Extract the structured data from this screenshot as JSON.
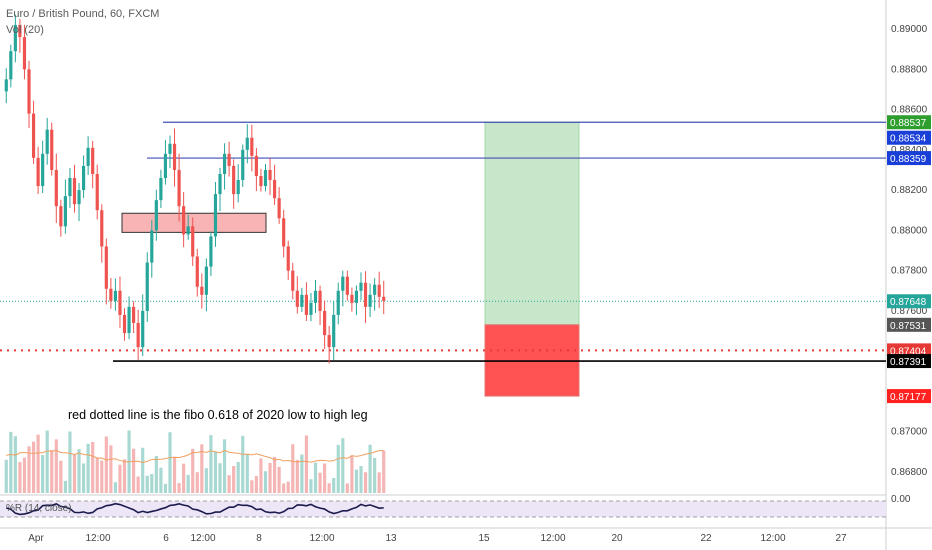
{
  "header": {
    "symbol_line": "Euro / British Pound, 60, FXCM",
    "volume_line": "Vol (20)"
  },
  "annotation": {
    "text": "red dotted line is the fibo 0.618 of 2020 low to high leg"
  },
  "oscillator": {
    "label": "%R (14, close)",
    "axis_label": "0.00"
  },
  "colors": {
    "up": "#26a69a",
    "down": "#ef5350",
    "level_line": "#3f51b5",
    "fib_line": "#e53935",
    "profit_zone": "#c8e6c9",
    "loss_zone": "#ff5252",
    "last_price": "#26a69a"
  },
  "chart_data": {
    "type": "candlestick",
    "title": "Euro / British Pound, 60, FXCM",
    "xlabel": "",
    "ylabel": "",
    "ylim": [
      0.8657,
      0.8912
    ],
    "y_ticks": [
      "0.89000",
      "0.88800",
      "0.88600",
      "0.88400",
      "0.88200",
      "0.88000",
      "0.87800",
      "0.87600",
      "0.87000",
      "0.86800"
    ],
    "x_ticks": [
      "Apr",
      "12:00",
      "6",
      "12:00",
      "8",
      "12:00",
      "13",
      "15",
      "12:00",
      "20",
      "22",
      "12:00",
      "27"
    ],
    "price_tags": [
      {
        "label": "0.88537",
        "color": "#2e9e2e",
        "text_color": "#ffffff",
        "value": 0.88537
      },
      {
        "label": "0.88534",
        "color": "#1a3ed8",
        "text_color": "#ffffff",
        "value": 0.8846
      },
      {
        "label": "0.88359",
        "color": "#1a3ed8",
        "text_color": "#ffffff",
        "value": 0.88359
      },
      {
        "label": "0.87648",
        "color": "#26a69a",
        "text_color": "#ffffff",
        "value": 0.87648
      },
      {
        "label": "0.87531",
        "color": "#555555",
        "text_color": "#ffffff",
        "value": 0.87531
      },
      {
        "label": "0.87404",
        "color": "#e53935",
        "text_color": "#ffffff",
        "value": 0.87404
      },
      {
        "label": "0.87391",
        "color": "#000000",
        "text_color": "#ffffff",
        "value": 0.87351
      },
      {
        "label": "0.87177",
        "color": "#ff2020",
        "text_color": "#ffffff",
        "value": 0.87177
      }
    ],
    "levels": [
      {
        "name": "resistance_high",
        "value": 0.88537,
        "color": "#3f51b5"
      },
      {
        "name": "resistance_low",
        "value": 0.88359,
        "color": "#3f51b5"
      },
      {
        "name": "fib_0.618",
        "value": 0.87404,
        "color": "#e53935",
        "style": "dotted"
      },
      {
        "name": "support",
        "value": 0.87391,
        "color": "#000000"
      }
    ],
    "current_price": 0.87648,
    "demand_zone": {
      "low": 0.8799,
      "high": 0.88085
    },
    "position": {
      "entry": 0.87531,
      "target": 0.88537,
      "stop": 0.87177
    },
    "ohlc_close_path": [
      0.8875,
      0.8889,
      0.8902,
      0.8896,
      0.888,
      0.8858,
      0.8836,
      0.8822,
      0.8838,
      0.885,
      0.883,
      0.8812,
      0.8802,
      0.8817,
      0.8826,
      0.8813,
      0.882,
      0.8832,
      0.8841,
      0.8828,
      0.881,
      0.8792,
      0.8771,
      0.8765,
      0.877,
      0.8758,
      0.8749,
      0.8762,
      0.8754,
      0.8742,
      0.876,
      0.8784,
      0.88,
      0.8815,
      0.8826,
      0.8838,
      0.8843,
      0.883,
      0.8812,
      0.8798,
      0.8802,
      0.8787,
      0.8772,
      0.8768,
      0.8782,
      0.8797,
      0.8818,
      0.8828,
      0.8838,
      0.8832,
      0.8818,
      0.8825,
      0.884,
      0.8846,
      0.8837,
      0.8827,
      0.8822,
      0.883,
      0.8825,
      0.8816,
      0.8806,
      0.8792,
      0.878,
      0.877,
      0.8762,
      0.8768,
      0.8758,
      0.8764,
      0.877,
      0.876,
      0.8748,
      0.8742,
      0.8758,
      0.877,
      0.8777,
      0.8768,
      0.8764,
      0.877,
      0.8774,
      0.8762,
      0.8768,
      0.8773,
      0.8767,
      0.8765
    ]
  }
}
